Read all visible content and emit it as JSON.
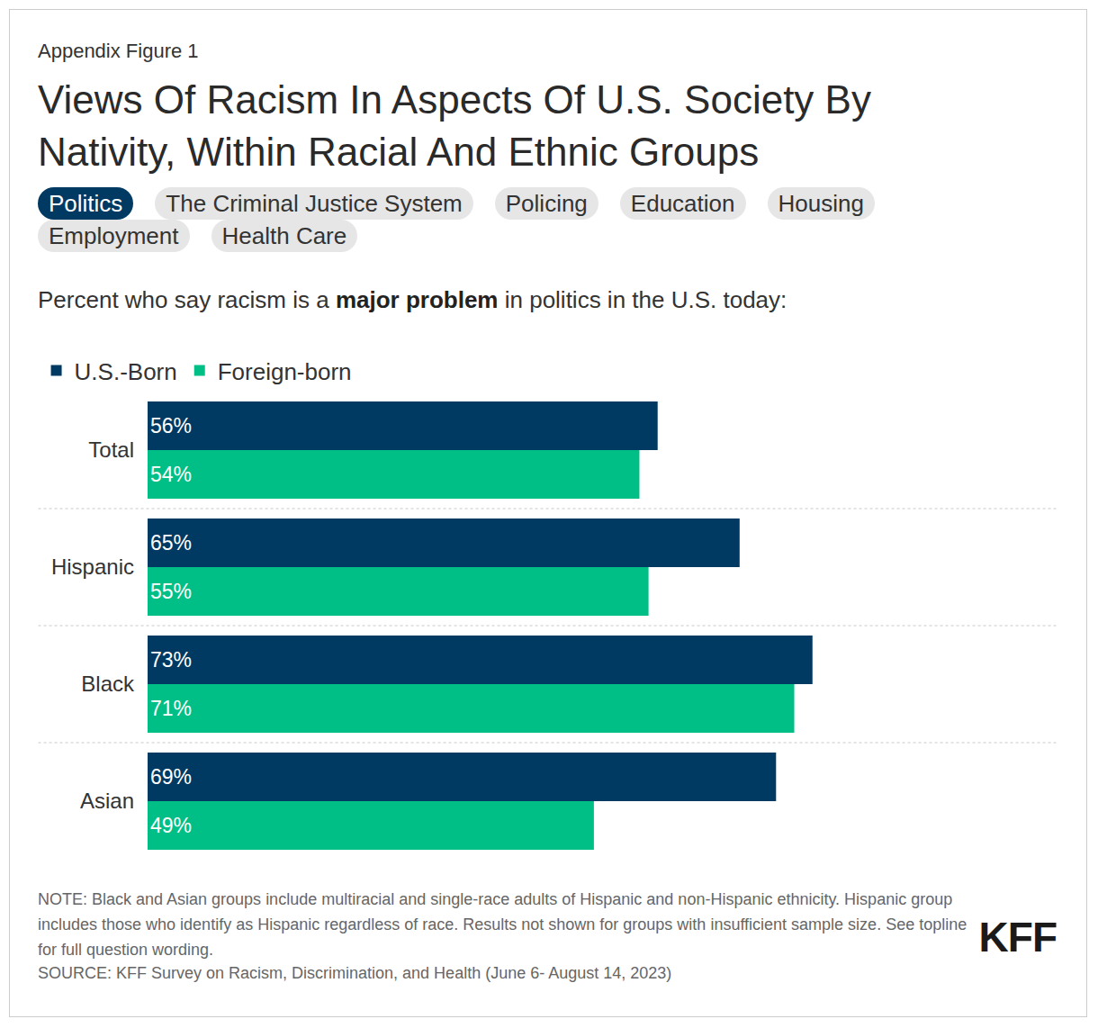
{
  "chart_data": {
    "type": "bar",
    "orientation": "horizontal",
    "figure_label": "Appendix Figure 1",
    "title": "Views Of Racism In Aspects Of U.S. Society By Nativity, Within Racial And Ethnic Groups",
    "tabs": [
      "Politics",
      "The Criminal Justice System",
      "Policing",
      "Education",
      "Housing",
      "Employment",
      "Health Care"
    ],
    "active_tab": "Politics",
    "subtitle": "Percent who say racism is a major problem in politics in the U.S. today:",
    "subtitle_bold": "major problem",
    "categories": [
      "Total",
      "Hispanic",
      "Black",
      "Asian"
    ],
    "series": [
      {
        "name": "U.S.-Born",
        "color": "#003a63",
        "values": [
          56,
          65,
          73,
          69
        ],
        "value_labels": [
          "56%",
          "65%",
          "73%",
          "69%"
        ]
      },
      {
        "name": "Foreign-born",
        "color": "#00bf86",
        "values": [
          54,
          55,
          71,
          49
        ],
        "value_labels": [
          "54%",
          "55%",
          "71%",
          "49%"
        ]
      }
    ],
    "xlim": [
      0,
      100
    ],
    "data_labels": true,
    "tick_labels": "y",
    "grid": false,
    "legend": "top-left",
    "note": "NOTE: Black and Asian groups include multiracial and single-race adults of Hispanic and non-Hispanic ethnicity. Hispanic group includes those who identify as Hispanic regardless of race. Results not shown for groups with insufficient sample size. See topline for full question wording.",
    "source": "SOURCE: KFF Survey on Racism, Discrimination, and Health (June 6- August 14, 2023)",
    "logo": "KFF"
  }
}
